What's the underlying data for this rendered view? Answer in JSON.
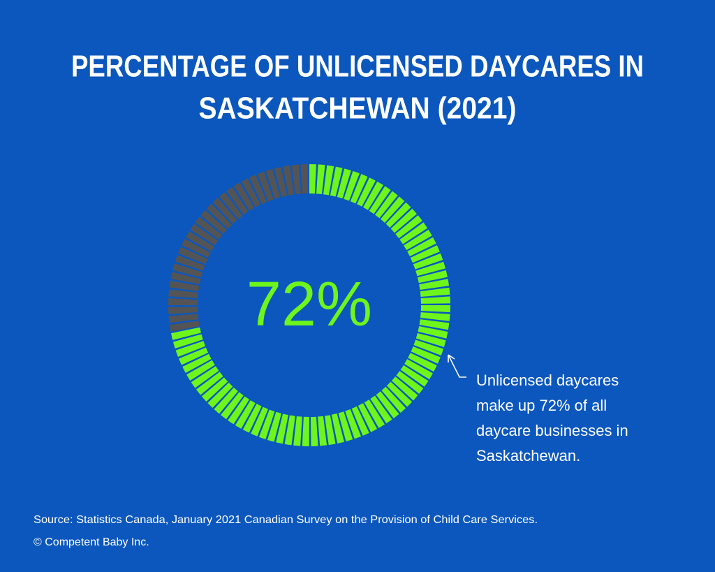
{
  "chart_data": {
    "type": "donut",
    "title": [
      "PERCENTAGE OF UNLICENSED DAYCARES IN",
      "SASKATCHEWAN (2021)"
    ],
    "values": [
      72,
      28
    ],
    "value_labels": [
      "72%",
      null
    ],
    "colors": [
      "#6ef51c",
      "#545454"
    ],
    "annotation": [
      "Unlicensed daycares",
      "make up 72% of all",
      "daycare businesses in",
      "Saskatchewan."
    ],
    "source": "Source: Statistics Canada, January 2021 Canadian Survey on the Provision of Child Care Services.",
    "copyright": "© Competent Baby Inc."
  }
}
